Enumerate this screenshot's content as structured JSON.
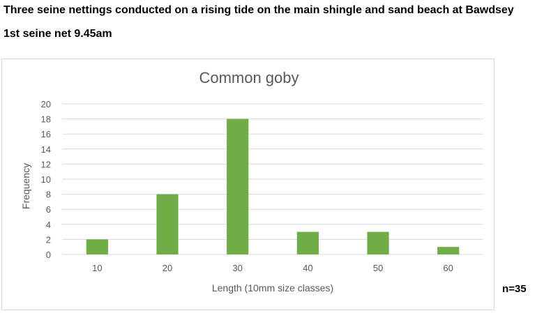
{
  "page": {
    "heading": "Three seine nettings conducted on a rising tide on the main shingle and sand beach at Bawdsey",
    "subheading": "1st seine net 9.45am",
    "n_label": "n=35"
  },
  "chart_data": {
    "type": "bar",
    "title": "Common goby",
    "xlabel": "Length (10mm size classes)",
    "ylabel": "Frequency",
    "categories": [
      "10",
      "20",
      "30",
      "40",
      "50",
      "60"
    ],
    "values": [
      2,
      8,
      18,
      3,
      3,
      1
    ],
    "ylim": [
      0,
      20
    ],
    "yticks": [
      0,
      2,
      4,
      6,
      8,
      10,
      12,
      14,
      16,
      18,
      20
    ],
    "grid": true,
    "legend": "none",
    "bar_color": "#70ad47",
    "grid_color": "#d9d9d9",
    "text_color": "#595959"
  }
}
